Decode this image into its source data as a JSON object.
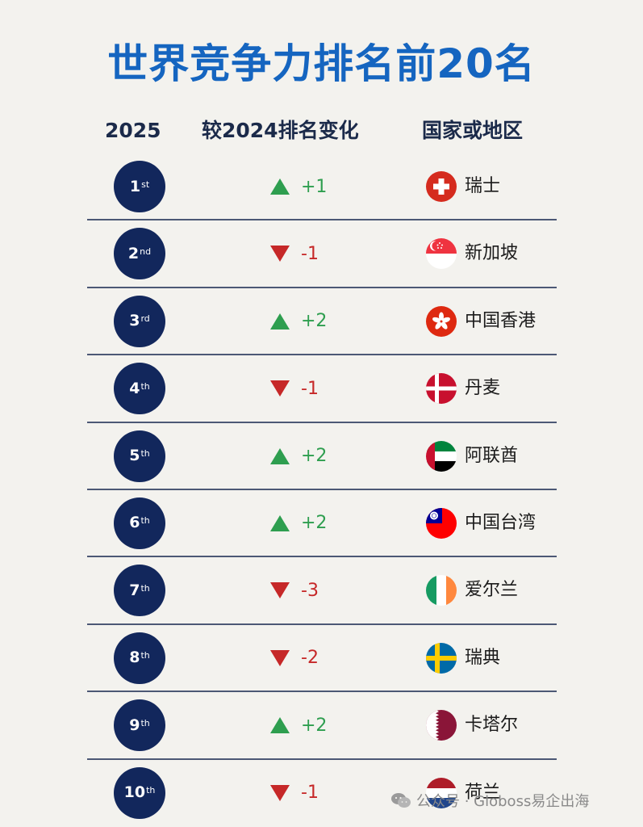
{
  "title": "世界竞争力排名前20名",
  "headers": {
    "year": "2025",
    "change": "较2024排名变化",
    "country": "国家或地区"
  },
  "rows": [
    {
      "rank": "1",
      "suffix": "st",
      "direction": "up",
      "change": "+1",
      "country": "瑞士",
      "flag": "switzerland-flag-icon"
    },
    {
      "rank": "2",
      "suffix": "nd",
      "direction": "down",
      "change": "-1",
      "country": "新加坡",
      "flag": "singapore-flag-icon"
    },
    {
      "rank": "3",
      "suffix": "rd",
      "direction": "up",
      "change": "+2",
      "country": "中国香港",
      "flag": "hong-kong-flag-icon"
    },
    {
      "rank": "4",
      "suffix": "th",
      "direction": "down",
      "change": "-1",
      "country": "丹麦",
      "flag": "denmark-flag-icon"
    },
    {
      "rank": "5",
      "suffix": "th",
      "direction": "up",
      "change": "+2",
      "country": "阿联酋",
      "flag": "uae-flag-icon"
    },
    {
      "rank": "6",
      "suffix": "th",
      "direction": "up",
      "change": "+2",
      "country": "中国台湾",
      "flag": "taiwan-flag-icon"
    },
    {
      "rank": "7",
      "suffix": "th",
      "direction": "down",
      "change": "-3",
      "country": "爱尔兰",
      "flag": "ireland-flag-icon"
    },
    {
      "rank": "8",
      "suffix": "th",
      "direction": "down",
      "change": "-2",
      "country": "瑞典",
      "flag": "sweden-flag-icon"
    },
    {
      "rank": "9",
      "suffix": "th",
      "direction": "up",
      "change": "+2",
      "country": "卡塔尔",
      "flag": "qatar-flag-icon"
    },
    {
      "rank": "10",
      "suffix": "th",
      "direction": "down",
      "change": "-1",
      "country": "荷兰",
      "flag": "netherlands-flag-icon"
    }
  ],
  "watermark": "公众号 · Globoss易企出海",
  "colors": {
    "title": "#1565c0",
    "rank_circle": "#12275c",
    "up": "#2e9e4f",
    "down": "#c62828"
  }
}
